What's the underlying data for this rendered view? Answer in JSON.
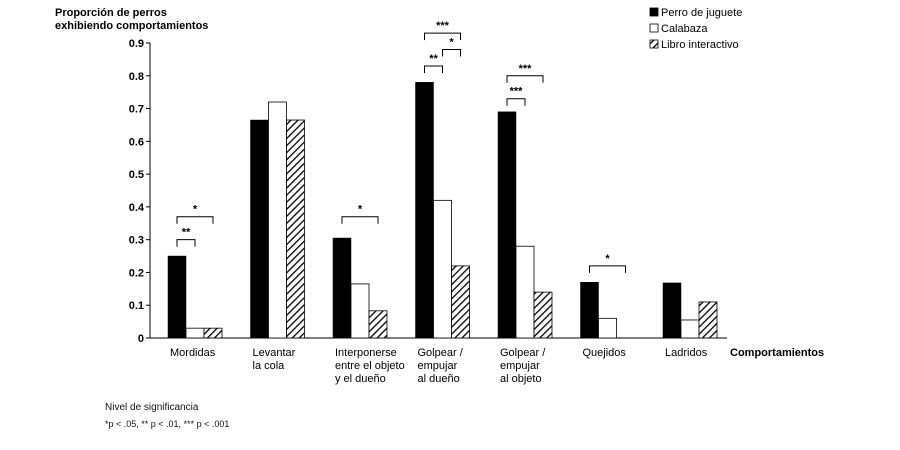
{
  "chart_data": {
    "type": "bar",
    "ylabel_lines": [
      "Proporción de perros",
      "exhibiendo comportamientos"
    ],
    "xlabel": "Comportamientos",
    "ylim": [
      0,
      0.9
    ],
    "yticks": [
      "0",
      "0.1",
      "0.2",
      "0.3",
      "0.4",
      "0.5",
      "0.6",
      "0.7",
      "0.8",
      "0.9"
    ],
    "categories": [
      [
        "Mordidas"
      ],
      [
        "Levantar",
        "la cola"
      ],
      [
        "Interponerse",
        "entre el objeto",
        "y el dueño"
      ],
      [
        "Golpear /",
        "empujar",
        "al dueño"
      ],
      [
        "Golpear /",
        "empujar",
        "al objeto"
      ],
      [
        "Quejidos"
      ],
      [
        "Ladridos"
      ]
    ],
    "series": [
      {
        "name": "Perro de juguete",
        "style": "solid",
        "color": "#000000",
        "values": [
          0.25,
          0.665,
          0.305,
          0.78,
          0.69,
          0.17,
          0.168
        ]
      },
      {
        "name": "Calabaza",
        "style": "hollow",
        "color": "#ffffff",
        "values": [
          0.03,
          0.72,
          0.165,
          0.42,
          0.28,
          0.06,
          0.055
        ]
      },
      {
        "name": "Libro interactivo",
        "style": "hatched",
        "color": "#000000",
        "values": [
          0.03,
          0.665,
          0.083,
          0.22,
          0.14,
          0.0,
          0.11
        ]
      }
    ],
    "significance": [
      {
        "category": 0,
        "from": 0,
        "to": 1,
        "label": "**",
        "y": 0.3
      },
      {
        "category": 0,
        "from": 0,
        "to": 2,
        "label": "*",
        "y": 0.37
      },
      {
        "category": 2,
        "from": 0,
        "to": 2,
        "label": "*",
        "y": 0.37
      },
      {
        "category": 3,
        "from": 0,
        "to": 1,
        "label": "**",
        "y": 0.83
      },
      {
        "category": 3,
        "from": 1,
        "to": 2,
        "label": "*",
        "y": 0.88
      },
      {
        "category": 3,
        "from": 0,
        "to": 2,
        "label": "***",
        "y": 0.93
      },
      {
        "category": 4,
        "from": 0,
        "to": 1,
        "label": "***",
        "y": 0.73
      },
      {
        "category": 4,
        "from": 0,
        "to": 2,
        "label": "***",
        "y": 0.8
      },
      {
        "category": 5,
        "from": 0,
        "to": 2,
        "label": "*",
        "y": 0.22
      }
    ],
    "legend_position": "top-right",
    "grid": false
  },
  "footnote": {
    "title": "Nivel de significancia",
    "line": "*p < .05,   ** p < .01,   *** p < .001"
  }
}
